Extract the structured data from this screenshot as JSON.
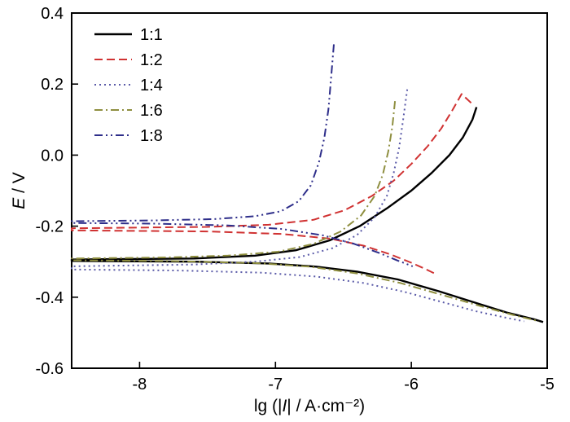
{
  "chart_data": {
    "type": "line",
    "title": "",
    "xlabel": "lg (|I| / A·cm⁻²)",
    "xlabel_parts": {
      "pre": "lg (|",
      "var": "I",
      "post": "| / A·cm⁻²)"
    },
    "ylabel": "E / V",
    "ylabel_parts": {
      "var": "E",
      "post": " / V"
    },
    "xlim": [
      -8.5,
      -5
    ],
    "ylim": [
      -0.6,
      0.4
    ],
    "xticks": [
      -8,
      -7,
      -6,
      -5
    ],
    "yticks": [
      -0.6,
      -0.4,
      -0.2,
      0.0,
      0.2,
      0.4
    ],
    "grid": false,
    "legend_position": "top-left",
    "frame_color": "#000000",
    "series": [
      {
        "name": "1:1",
        "color": "#000000",
        "dash": [],
        "width": 2.4,
        "ecorr": -0.295,
        "points": [
          [
            -5.52,
            0.135
          ],
          [
            -5.55,
            0.1
          ],
          [
            -5.62,
            0.05
          ],
          [
            -5.72,
            0.0
          ],
          [
            -5.85,
            -0.05
          ],
          [
            -6.0,
            -0.1
          ],
          [
            -6.18,
            -0.15
          ],
          [
            -6.38,
            -0.2
          ],
          [
            -6.6,
            -0.24
          ],
          [
            -6.85,
            -0.268
          ],
          [
            -7.15,
            -0.283
          ],
          [
            -7.6,
            -0.291
          ],
          [
            -8.5,
            -0.294
          ],
          [
            -8.5,
            -0.298
          ],
          [
            -7.6,
            -0.3
          ],
          [
            -7.05,
            -0.305
          ],
          [
            -6.7,
            -0.314
          ],
          [
            -6.4,
            -0.328
          ],
          [
            -6.1,
            -0.35
          ],
          [
            -5.8,
            -0.383
          ],
          [
            -5.55,
            -0.413
          ],
          [
            -5.3,
            -0.443
          ],
          [
            -5.1,
            -0.462
          ],
          [
            -5.03,
            -0.47
          ]
        ]
      },
      {
        "name": "1:2",
        "color": "#d03232",
        "dash": [
          10,
          5
        ],
        "width": 2,
        "ecorr": -0.209,
        "points": [
          [
            -5.56,
            0.147
          ],
          [
            -5.63,
            0.172
          ],
          [
            -5.7,
            0.125
          ],
          [
            -5.78,
            0.075
          ],
          [
            -5.88,
            0.025
          ],
          [
            -6.0,
            -0.025
          ],
          [
            -6.13,
            -0.072
          ],
          [
            -6.29,
            -0.115
          ],
          [
            -6.49,
            -0.155
          ],
          [
            -6.72,
            -0.182
          ],
          [
            -7.05,
            -0.196
          ],
          [
            -7.5,
            -0.202
          ],
          [
            -8.5,
            -0.206
          ],
          [
            -8.5,
            -0.212
          ],
          [
            -7.5,
            -0.215
          ],
          [
            -6.95,
            -0.222
          ],
          [
            -6.6,
            -0.235
          ],
          [
            -6.35,
            -0.255
          ],
          [
            -6.15,
            -0.28
          ],
          [
            -6.0,
            -0.303
          ],
          [
            -5.9,
            -0.32
          ],
          [
            -5.83,
            -0.333
          ]
        ]
      },
      {
        "name": "1:4",
        "color": "#5a5aa8",
        "dash": [
          2,
          4
        ],
        "width": 2,
        "ecorr": -0.318,
        "points": [
          [
            -6.03,
            0.185
          ],
          [
            -6.06,
            0.1
          ],
          [
            -6.09,
            0.02
          ],
          [
            -6.13,
            -0.05
          ],
          [
            -6.18,
            -0.115
          ],
          [
            -6.27,
            -0.175
          ],
          [
            -6.4,
            -0.225
          ],
          [
            -6.58,
            -0.262
          ],
          [
            -6.82,
            -0.287
          ],
          [
            -7.15,
            -0.3
          ],
          [
            -7.6,
            -0.308
          ],
          [
            -8.5,
            -0.313
          ],
          [
            -8.5,
            -0.322
          ],
          [
            -7.7,
            -0.325
          ],
          [
            -7.1,
            -0.331
          ],
          [
            -6.7,
            -0.342
          ],
          [
            -6.35,
            -0.36
          ],
          [
            -6.05,
            -0.385
          ],
          [
            -5.78,
            -0.413
          ],
          [
            -5.52,
            -0.44
          ],
          [
            -5.3,
            -0.458
          ],
          [
            -5.17,
            -0.468
          ]
        ]
      },
      {
        "name": "1:6",
        "color": "#8f8f40",
        "dash": [
          10,
          4,
          2,
          4
        ],
        "width": 2,
        "ecorr": -0.293,
        "points": [
          [
            -6.12,
            0.152
          ],
          [
            -6.14,
            0.08
          ],
          [
            -6.17,
            0.01
          ],
          [
            -6.21,
            -0.055
          ],
          [
            -6.27,
            -0.115
          ],
          [
            -6.37,
            -0.17
          ],
          [
            -6.52,
            -0.215
          ],
          [
            -6.72,
            -0.25
          ],
          [
            -6.98,
            -0.272
          ],
          [
            -7.35,
            -0.283
          ],
          [
            -7.8,
            -0.288
          ],
          [
            -8.5,
            -0.291
          ],
          [
            -8.5,
            -0.296
          ],
          [
            -7.8,
            -0.298
          ],
          [
            -7.15,
            -0.304
          ],
          [
            -6.75,
            -0.314
          ],
          [
            -6.4,
            -0.333
          ],
          [
            -6.08,
            -0.36
          ],
          [
            -5.78,
            -0.393
          ],
          [
            -5.5,
            -0.424
          ],
          [
            -5.25,
            -0.45
          ],
          [
            -5.06,
            -0.468
          ]
        ]
      },
      {
        "name": "1:8",
        "color": "#2e2e8a",
        "dash": [
          10,
          4,
          2,
          4,
          2,
          4
        ],
        "width": 2,
        "ecorr": -0.188,
        "points": [
          [
            -6.57,
            0.312
          ],
          [
            -6.59,
            0.22
          ],
          [
            -6.61,
            0.13
          ],
          [
            -6.64,
            0.05
          ],
          [
            -6.68,
            -0.02
          ],
          [
            -6.74,
            -0.085
          ],
          [
            -6.83,
            -0.13
          ],
          [
            -6.96,
            -0.158
          ],
          [
            -7.15,
            -0.172
          ],
          [
            -7.45,
            -0.18
          ],
          [
            -7.9,
            -0.184
          ],
          [
            -8.5,
            -0.186
          ],
          [
            -8.5,
            -0.191
          ],
          [
            -7.9,
            -0.193
          ],
          [
            -7.35,
            -0.198
          ],
          [
            -6.95,
            -0.208
          ],
          [
            -6.65,
            -0.226
          ],
          [
            -6.42,
            -0.25
          ],
          [
            -6.24,
            -0.275
          ],
          [
            -6.1,
            -0.297
          ],
          [
            -5.99,
            -0.313
          ]
        ]
      }
    ]
  }
}
